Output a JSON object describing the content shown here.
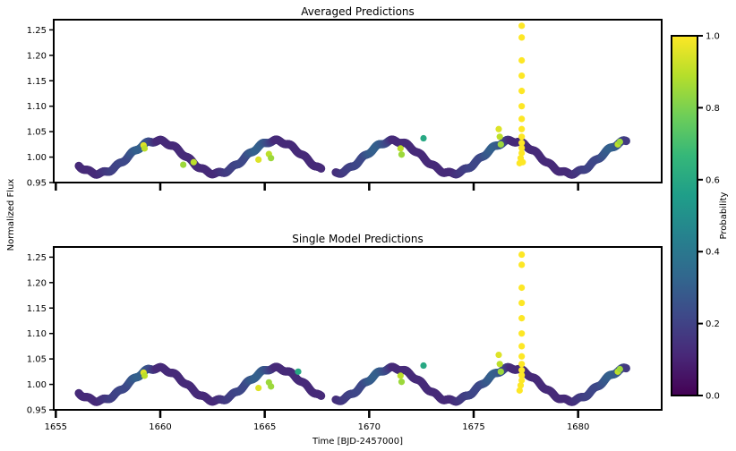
{
  "figure": {
    "xlabel": "Time [BJD-2457000]",
    "ylabel": "Normalized Flux",
    "colorbar_label": "Probability"
  },
  "chart_data": [
    {
      "type": "scatter",
      "title": "Averaged Predictions",
      "xlim": [
        1654.9,
        1684.0
      ],
      "ylim": [
        0.95,
        1.27
      ],
      "xticks": [
        1655,
        1660,
        1665,
        1670,
        1675,
        1680
      ],
      "xtick_labels_visible": false,
      "yticks": [
        0.95,
        1.0,
        1.05,
        1.1,
        1.15,
        1.2,
        1.25
      ],
      "colormap": "viridis",
      "baseline": {
        "segments": [
          [
            1656.1,
            1667.7
          ],
          [
            1668.4,
            1682.3
          ]
        ],
        "mean": 1.0,
        "amplitude": 0.032,
        "period": 5.65,
        "peak_at": 1659.85
      },
      "highlights": [
        {
          "x": 1659.2,
          "y": 1.023,
          "p": 0.95
        },
        {
          "x": 1659.25,
          "y": 1.017,
          "p": 0.9
        },
        {
          "x": 1661.1,
          "y": 0.985,
          "p": 0.85
        },
        {
          "x": 1661.6,
          "y": 0.99,
          "p": 0.9
        },
        {
          "x": 1664.7,
          "y": 0.995,
          "p": 0.95
        },
        {
          "x": 1665.2,
          "y": 1.006,
          "p": 0.9
        },
        {
          "x": 1665.3,
          "y": 0.998,
          "p": 0.85
        },
        {
          "x": 1671.5,
          "y": 1.017,
          "p": 0.9
        },
        {
          "x": 1671.55,
          "y": 1.005,
          "p": 0.85
        },
        {
          "x": 1672.6,
          "y": 1.037,
          "p": 0.6
        },
        {
          "x": 1676.2,
          "y": 1.055,
          "p": 0.95
        },
        {
          "x": 1676.25,
          "y": 1.04,
          "p": 0.9
        },
        {
          "x": 1676.3,
          "y": 1.025,
          "p": 0.85
        },
        {
          "x": 1677.3,
          "y": 1.258,
          "p": 1.0
        },
        {
          "x": 1677.3,
          "y": 1.235,
          "p": 1.0
        },
        {
          "x": 1677.3,
          "y": 1.19,
          "p": 1.0
        },
        {
          "x": 1677.3,
          "y": 1.16,
          "p": 1.0
        },
        {
          "x": 1677.3,
          "y": 1.13,
          "p": 1.0
        },
        {
          "x": 1677.3,
          "y": 1.1,
          "p": 1.0
        },
        {
          "x": 1677.3,
          "y": 1.075,
          "p": 1.0
        },
        {
          "x": 1677.3,
          "y": 1.055,
          "p": 1.0
        },
        {
          "x": 1677.3,
          "y": 1.04,
          "p": 1.0
        },
        {
          "x": 1677.3,
          "y": 1.028,
          "p": 1.0
        },
        {
          "x": 1677.3,
          "y": 1.018,
          "p": 1.0
        },
        {
          "x": 1677.3,
          "y": 1.008,
          "p": 1.0
        },
        {
          "x": 1677.25,
          "y": 0.998,
          "p": 1.0
        },
        {
          "x": 1677.2,
          "y": 0.988,
          "p": 1.0
        },
        {
          "x": 1677.35,
          "y": 0.99,
          "p": 1.0
        },
        {
          "x": 1681.9,
          "y": 1.025,
          "p": 0.9
        },
        {
          "x": 1682.0,
          "y": 1.03,
          "p": 0.85
        }
      ]
    },
    {
      "type": "scatter",
      "title": "Single Model Predictions",
      "xlim": [
        1654.9,
        1684.0
      ],
      "ylim": [
        0.95,
        1.27
      ],
      "xticks": [
        1655,
        1660,
        1665,
        1670,
        1675,
        1680
      ],
      "xtick_labels_visible": true,
      "yticks": [
        0.95,
        1.0,
        1.05,
        1.1,
        1.15,
        1.2,
        1.25
      ],
      "colormap": "viridis",
      "baseline": {
        "segments": [
          [
            1656.1,
            1667.7
          ],
          [
            1668.4,
            1682.3
          ]
        ],
        "mean": 1.0,
        "amplitude": 0.032,
        "period": 5.65,
        "peak_at": 1659.85
      },
      "highlights": [
        {
          "x": 1659.2,
          "y": 1.023,
          "p": 0.95
        },
        {
          "x": 1659.25,
          "y": 1.017,
          "p": 0.9
        },
        {
          "x": 1664.7,
          "y": 0.993,
          "p": 0.95
        },
        {
          "x": 1665.2,
          "y": 1.004,
          "p": 0.85
        },
        {
          "x": 1665.3,
          "y": 0.996,
          "p": 0.85
        },
        {
          "x": 1666.6,
          "y": 1.025,
          "p": 0.6
        },
        {
          "x": 1671.5,
          "y": 1.017,
          "p": 0.9
        },
        {
          "x": 1671.55,
          "y": 1.005,
          "p": 0.85
        },
        {
          "x": 1672.6,
          "y": 1.037,
          "p": 0.6
        },
        {
          "x": 1676.2,
          "y": 1.058,
          "p": 0.95
        },
        {
          "x": 1676.25,
          "y": 1.04,
          "p": 0.9
        },
        {
          "x": 1676.3,
          "y": 1.025,
          "p": 0.85
        },
        {
          "x": 1677.3,
          "y": 1.255,
          "p": 1.0
        },
        {
          "x": 1677.3,
          "y": 1.235,
          "p": 1.0
        },
        {
          "x": 1677.3,
          "y": 1.19,
          "p": 1.0
        },
        {
          "x": 1677.3,
          "y": 1.16,
          "p": 1.0
        },
        {
          "x": 1677.3,
          "y": 1.13,
          "p": 1.0
        },
        {
          "x": 1677.3,
          "y": 1.1,
          "p": 1.0
        },
        {
          "x": 1677.3,
          "y": 1.075,
          "p": 1.0
        },
        {
          "x": 1677.3,
          "y": 1.055,
          "p": 1.0
        },
        {
          "x": 1677.3,
          "y": 1.04,
          "p": 1.0
        },
        {
          "x": 1677.3,
          "y": 1.028,
          "p": 1.0
        },
        {
          "x": 1677.3,
          "y": 1.018,
          "p": 1.0
        },
        {
          "x": 1677.3,
          "y": 1.008,
          "p": 1.0
        },
        {
          "x": 1677.25,
          "y": 0.998,
          "p": 1.0
        },
        {
          "x": 1677.2,
          "y": 0.988,
          "p": 1.0
        },
        {
          "x": 1681.9,
          "y": 1.025,
          "p": 0.9
        },
        {
          "x": 1682.0,
          "y": 1.03,
          "p": 0.85
        }
      ]
    }
  ],
  "colorbar": {
    "range": [
      0.0,
      1.0
    ],
    "ticks": [
      "0.0",
      "0.2",
      "0.4",
      "0.6",
      "0.8",
      "1.0"
    ],
    "stops": [
      "#440154",
      "#482878",
      "#3e4989",
      "#31688e",
      "#26828e",
      "#1f9e89",
      "#35b779",
      "#6ece58",
      "#b5de2b",
      "#fde725"
    ]
  }
}
